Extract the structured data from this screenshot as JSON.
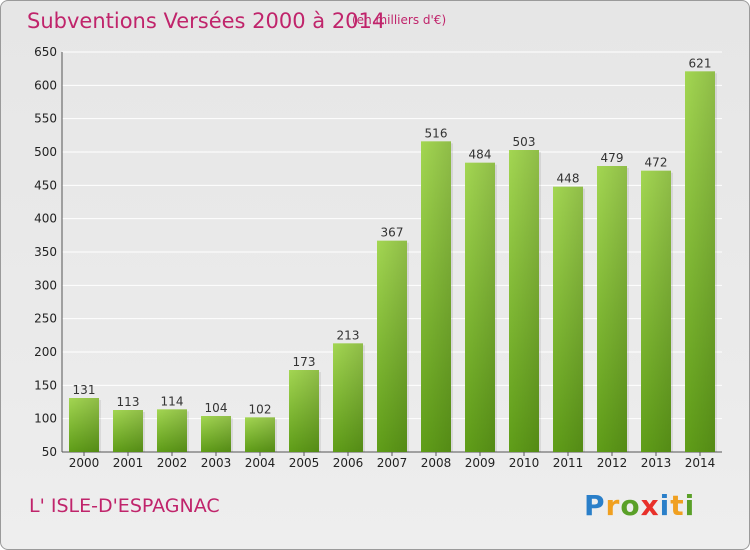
{
  "header": {
    "title": "Subventions Versées 2000 à 2014",
    "subtitle": "(en milliers d'€)"
  },
  "footer": {
    "place": "L' ISLE-D'ESPAGNAC",
    "logo": [
      "P",
      "r",
      "o",
      "x",
      "i",
      "t",
      "i"
    ]
  },
  "colors": {
    "title": "#c0246b",
    "bar_light": "#9fd24e",
    "bar_dark": "#5f9d18",
    "grid": "#ffffff",
    "background": "#e8e8e8"
  },
  "chart_data": {
    "type": "bar",
    "title": "Subventions Versées 2000 à 2014",
    "subtitle": "(en milliers d'€)",
    "categories": [
      "2000",
      "2001",
      "2002",
      "2003",
      "2004",
      "2005",
      "2006",
      "2007",
      "2008",
      "2009",
      "2010",
      "2011",
      "2012",
      "2013",
      "2014"
    ],
    "values": [
      131,
      113,
      114,
      104,
      102,
      173,
      213,
      367,
      516,
      484,
      503,
      448,
      479,
      472,
      621
    ],
    "ylim": [
      50,
      650
    ],
    "yticks": [
      50,
      100,
      150,
      200,
      250,
      300,
      350,
      400,
      450,
      500,
      550,
      600,
      650
    ],
    "grid": true,
    "xlabel": "",
    "ylabel": ""
  }
}
